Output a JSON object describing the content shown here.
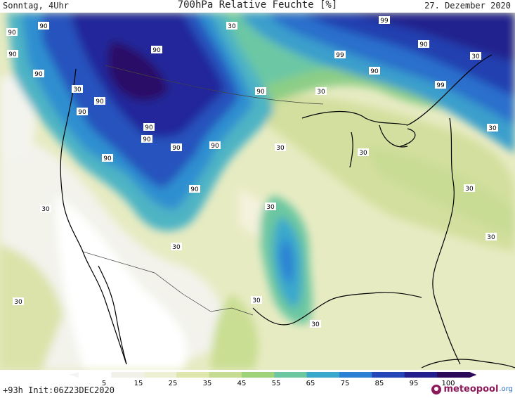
{
  "header": {
    "left": "Sonntag, 4Uhr",
    "center": "700hPa Relative Feuchte [%]",
    "right": "27. Dezember 2020"
  },
  "colorbar": {
    "ticks": [
      "5",
      "15",
      "25",
      "35",
      "45",
      "55",
      "65",
      "75",
      "85",
      "95",
      "100"
    ],
    "colors": [
      "#ffffff",
      "#f1f1ea",
      "#eef0d4",
      "#dfe6ae",
      "#c5dc92",
      "#9fd37a",
      "#6cc6a0",
      "#3aa8cc",
      "#2b80d4",
      "#2446b6",
      "#23208e",
      "#2c0a5a"
    ]
  },
  "footer": {
    "run": "+93h Init:06Z23DEC2020",
    "brand_name": "meteopool",
    "brand_tld": ".org"
  },
  "map_labels": [
    {
      "text": "90"
    },
    {
      "text": "90"
    },
    {
      "text": "90"
    },
    {
      "text": "90"
    },
    {
      "text": "90"
    },
    {
      "text": "90"
    },
    {
      "text": "90"
    },
    {
      "text": "90"
    },
    {
      "text": "90"
    },
    {
      "text": "90"
    },
    {
      "text": "90"
    },
    {
      "text": "90"
    },
    {
      "text": "90"
    },
    {
      "text": "90"
    },
    {
      "text": "90"
    },
    {
      "text": "90"
    },
    {
      "text": "99"
    },
    {
      "text": "99"
    },
    {
      "text": "99"
    },
    {
      "text": "30"
    },
    {
      "text": "30"
    },
    {
      "text": "30"
    },
    {
      "text": "30"
    },
    {
      "text": "30"
    },
    {
      "text": "30"
    },
    {
      "text": "30"
    },
    {
      "text": "30"
    },
    {
      "text": "30"
    },
    {
      "text": "30"
    },
    {
      "text": "30"
    },
    {
      "text": "30"
    },
    {
      "text": "30"
    },
    {
      "text": "30"
    },
    {
      "text": "30"
    }
  ]
}
